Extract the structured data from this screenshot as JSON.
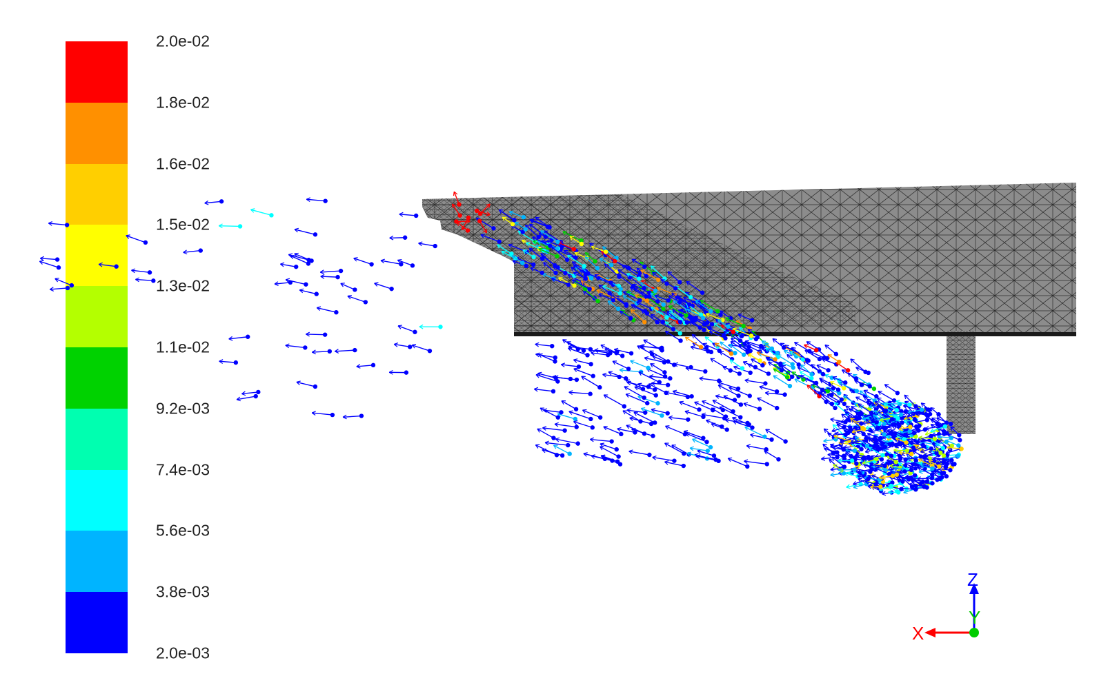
{
  "colormap": {
    "labels": [
      "2.0e-02",
      "1.8e-02",
      "1.6e-02",
      "1.5e-02",
      "1.3e-02",
      "1.1e-02",
      "9.2e-03",
      "7.4e-03",
      "5.6e-03",
      "3.8e-03",
      "2.0e-03"
    ],
    "colors": [
      "#ff0000",
      "#ff9000",
      "#ffcf00",
      "#ffff00",
      "#b4ff00",
      "#00d200",
      "#00ffb0",
      "#00ffff",
      "#00b4ff",
      "#0000ff"
    ]
  },
  "axes_triad": {
    "x_label": "X",
    "y_label": "Y",
    "z_label": "Z",
    "x_color": "#ff0000",
    "y_color": "#00cc00",
    "z_color": "#0000ff"
  },
  "mesh_color": "#8c8c8c"
}
